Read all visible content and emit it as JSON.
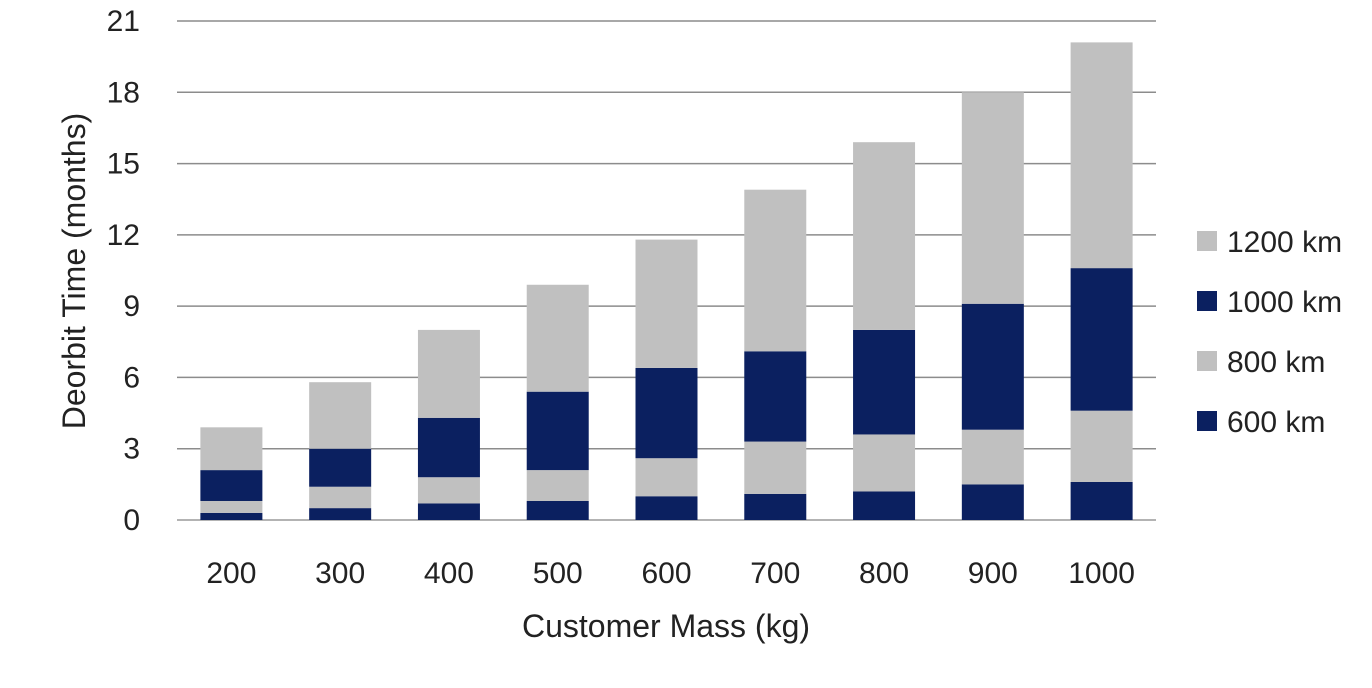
{
  "chart_data": {
    "type": "bar",
    "stacked": true,
    "title": "",
    "xlabel": "Customer Mass (kg)",
    "ylabel": "Deorbit Time (months)",
    "ylim": [
      0,
      21
    ],
    "yticks": [
      "0",
      "3",
      "6",
      "9",
      "12",
      "15",
      "18",
      "21"
    ],
    "grid": "horizontal",
    "legend_position": "right",
    "categories": [
      "200",
      "300",
      "400",
      "500",
      "600",
      "700",
      "800",
      "900",
      "1000"
    ],
    "series": [
      {
        "name": "600 km",
        "color": "#0b2060",
        "values": [
          0.3,
          0.5,
          0.7,
          0.8,
          1.0,
          1.1,
          1.2,
          1.5,
          1.6
        ]
      },
      {
        "name": "800 km",
        "color": "#c0c0c0",
        "values": [
          0.5,
          0.9,
          1.1,
          1.3,
          1.6,
          2.2,
          2.4,
          2.3,
          3.0
        ]
      },
      {
        "name": "1000 km",
        "color": "#0b2060",
        "values": [
          1.3,
          1.6,
          2.5,
          3.3,
          3.8,
          3.8,
          4.4,
          5.3,
          6.0
        ]
      },
      {
        "name": "1200 km",
        "color": "#c0c0c0",
        "values": [
          1.8,
          2.8,
          3.7,
          4.5,
          5.4,
          6.8,
          7.9,
          8.9,
          9.5
        ]
      }
    ],
    "legend_order": [
      "1200 km",
      "1000 km",
      "800 km",
      "600 km"
    ]
  }
}
